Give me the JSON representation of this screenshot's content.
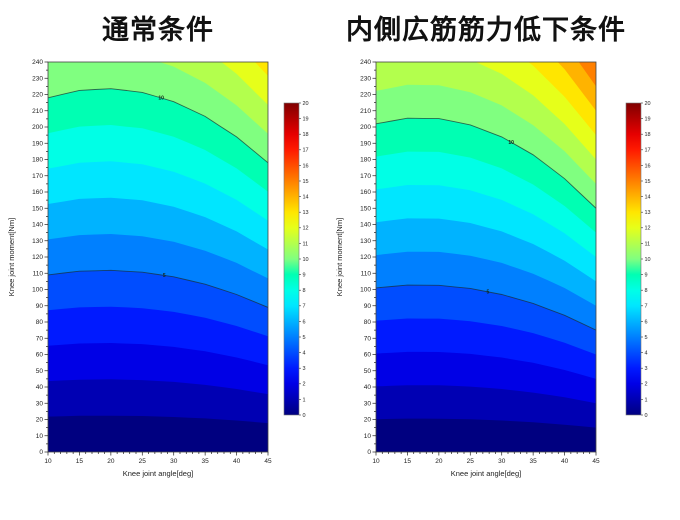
{
  "chart_data": {
    "type": "heatmap",
    "contour_line_color": "rgba(25,45,45,0.7)",
    "axis_color": "#222222",
    "palette_jet": [
      "#000080",
      "#0000B3",
      "#0000E6",
      "#001AFF",
      "#004DFF",
      "#0080FF",
      "#00B3FF",
      "#00E6FF",
      "#00FFE6",
      "#00FFB3",
      "#80FF80",
      "#B3FF4D",
      "#E6FF1A",
      "#FFE600",
      "#FFB300",
      "#FF8000",
      "#FF4D00",
      "#FF1A00",
      "#E60000",
      "#B30000",
      "#800000"
    ],
    "plots": [
      {
        "title": "通常条件",
        "xlabel": "Knee joint angle[deg]",
        "ylabel": "Knee joint moment[Nm]",
        "xlim": [
          10,
          45
        ],
        "ylim": [
          0,
          240
        ],
        "xtick_major_step": 5,
        "xtick_minor_step": 1,
        "ytick_major_step": 10,
        "ytick_minor_step": 5,
        "colorbar": {
          "min": 0,
          "max": 20,
          "tick_step": 1
        },
        "surface": {
          "angles": [
            10,
            15,
            20,
            25,
            30,
            35,
            40,
            45
          ],
          "moment_per_unit_value": [
            21.8,
            22.25,
            22.36,
            22.13,
            21.56,
            20.65,
            19.39,
            17.8
          ]
        },
        "contour_lines": [
          {
            "level": 10,
            "label": "10",
            "label_angle": 28
          },
          {
            "level": 5,
            "label": "5",
            "label_angle": 28.5
          }
        ]
      },
      {
        "title": "内側広筋筋力低下条件",
        "xlabel": "Knee joint angle[deg]",
        "ylabel": "Knee joint moment[Nm]",
        "xlim": [
          10,
          45
        ],
        "ylim": [
          0,
          240
        ],
        "xtick_major_step": 5,
        "xtick_minor_step": 1,
        "ytick_major_step": 10,
        "ytick_minor_step": 5,
        "colorbar": {
          "min": 0,
          "max": 20,
          "tick_step": 1
        },
        "surface": {
          "angles": [
            10,
            15,
            20,
            25,
            30,
            35,
            40,
            45
          ],
          "moment_per_unit_value": [
            20.2,
            20.54,
            20.52,
            20.13,
            19.39,
            18.29,
            16.82,
            15.0
          ]
        },
        "contour_lines": [
          {
            "level": 10,
            "label": "10",
            "label_angle": 31.5
          },
          {
            "level": 5,
            "label": "5",
            "label_angle": 27.8
          }
        ]
      }
    ]
  }
}
